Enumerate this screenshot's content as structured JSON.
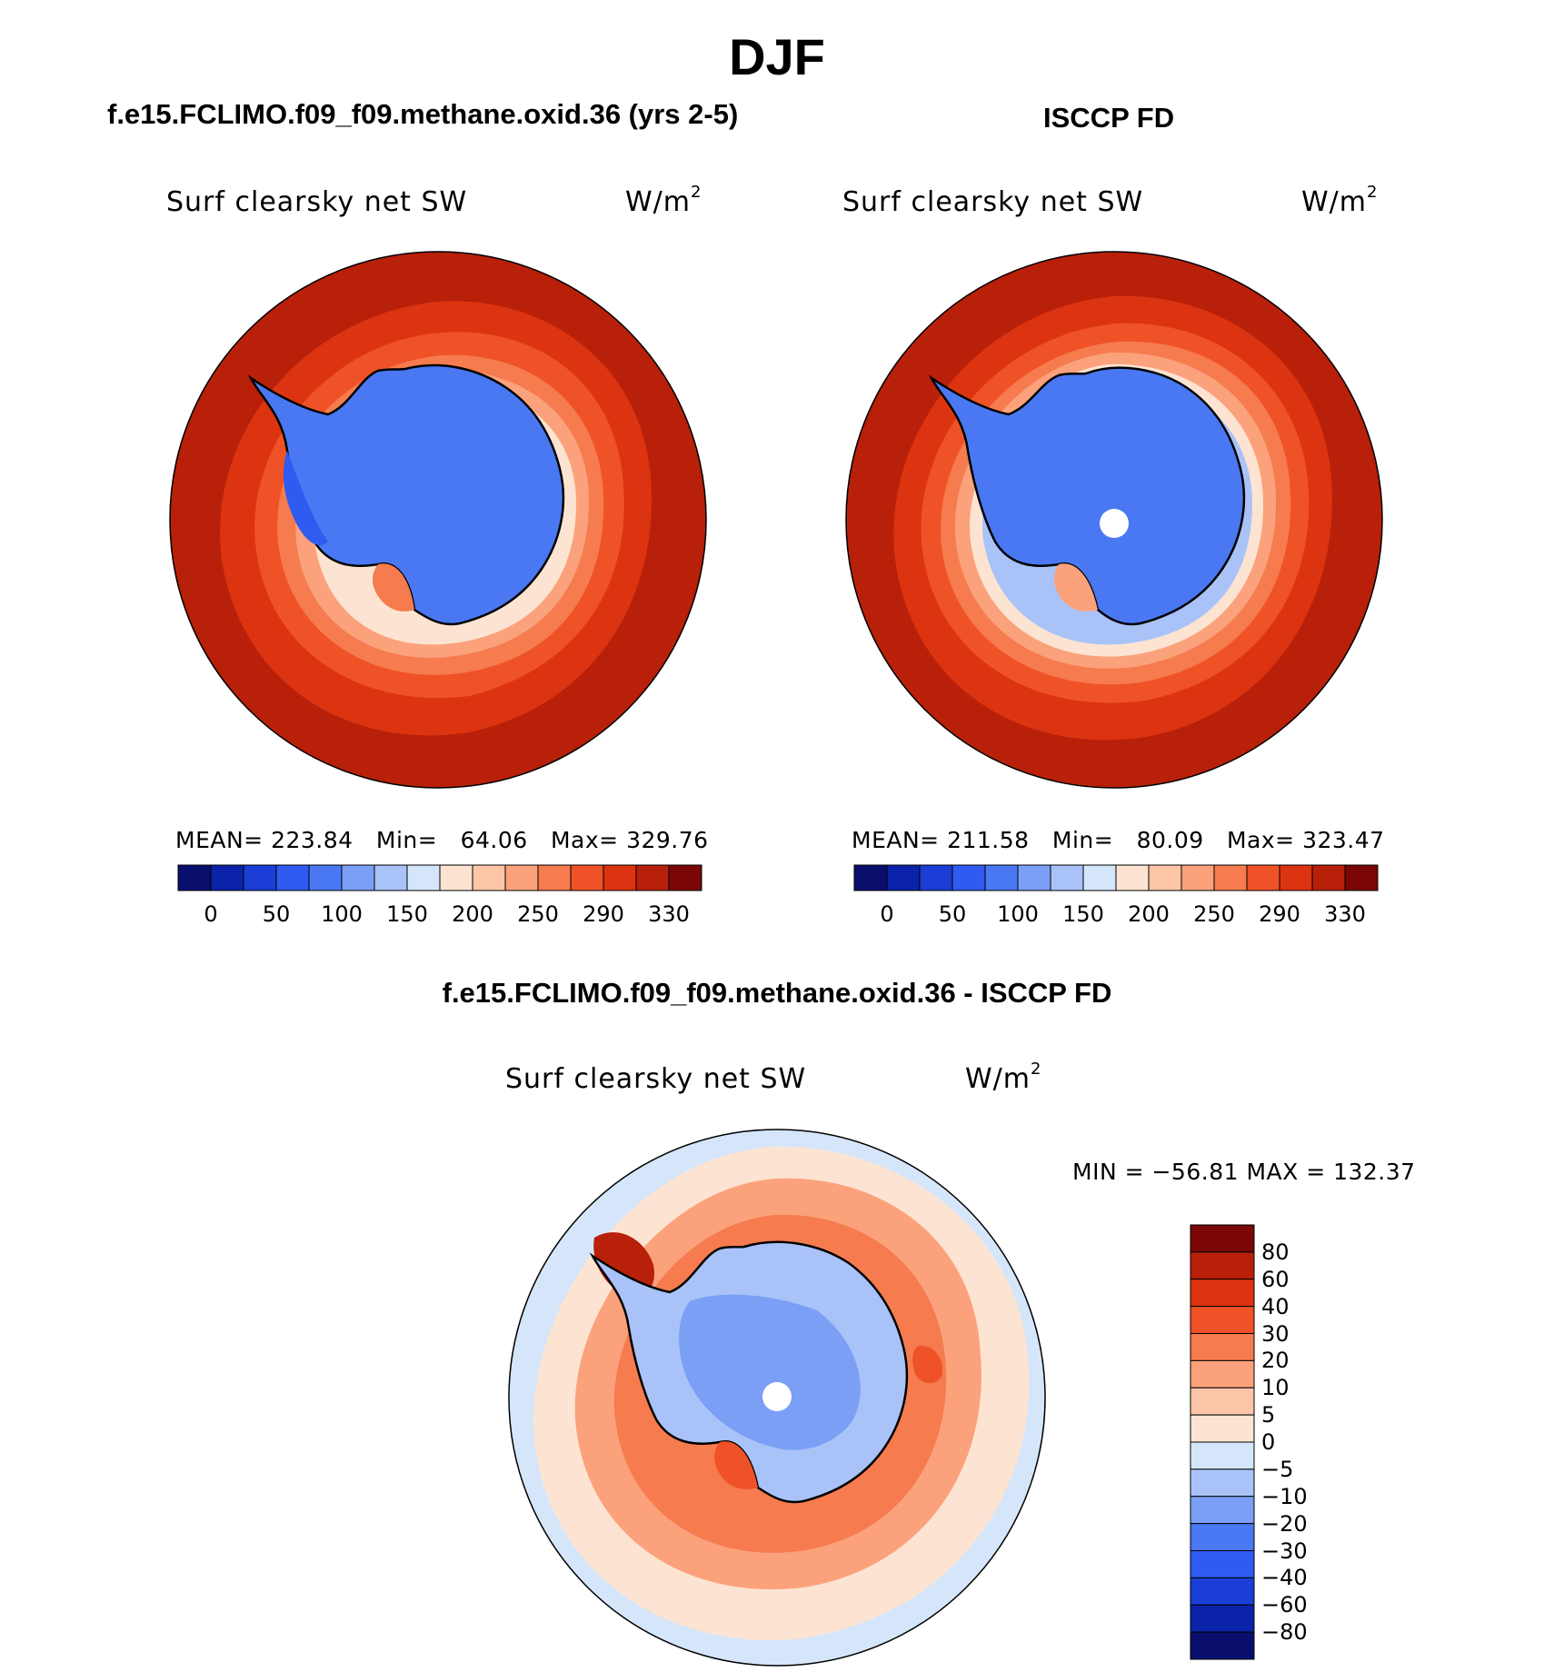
{
  "title": "DJF",
  "panels": {
    "model": {
      "header": "f.e15.FCLIMO.f09_f09.methane.oxid.36 (yrs 2-5)",
      "field_label": "Surf clearsky net SW",
      "units": "W/m",
      "units_sup": "2",
      "stats": {
        "mean_label": "MEAN=",
        "mean": "223.84",
        "min_label": "Min=",
        "min": "64.06",
        "max_label": "Max=",
        "max": "329.76"
      }
    },
    "obs": {
      "header": "ISCCP FD",
      "field_label": "Surf clearsky net SW",
      "units": "W/m",
      "units_sup": "2",
      "stats": {
        "mean_label": "MEAN=",
        "mean": "211.58",
        "min_label": "Min=",
        "min": "80.09",
        "max_label": "Max=",
        "max": "323.47"
      }
    },
    "diff": {
      "header": "f.e15.FCLIMO.f09_f09.methane.oxid.36 - ISCCP FD",
      "field_label": "Surf clearsky net SW",
      "units": "W/m",
      "units_sup": "2",
      "minmax": "MIN = −56.81 MAX = 132.37"
    }
  },
  "colorbars": {
    "absolute": {
      "colors": [
        "#0a0f6e",
        "#0b23a8",
        "#1a3ed6",
        "#2f5bf0",
        "#4a78f2",
        "#7a9ff5",
        "#a9c3f8",
        "#d6e6fa",
        "#fde4d2",
        "#fdc6a8",
        "#fba27c",
        "#f67b4f",
        "#ef5226",
        "#dc3410",
        "#b8200a",
        "#7a0606"
      ],
      "labels": [
        "0",
        "50",
        "100",
        "150",
        "200",
        "250",
        "290",
        "330"
      ]
    },
    "difference": {
      "colors": [
        "#0a0f6e",
        "#0b23a8",
        "#1a3ed6",
        "#2f5bf0",
        "#4a78f2",
        "#7a9ff5",
        "#a9c3f8",
        "#d6e6fa",
        "#fde4d2",
        "#fdc6a8",
        "#fba27c",
        "#f67b4f",
        "#ef5226",
        "#dc3410",
        "#b8200a",
        "#7a0606"
      ],
      "labels": [
        "80",
        "60",
        "40",
        "30",
        "20",
        "10",
        "5",
        "0",
        "−5",
        "−10",
        "−20",
        "−30",
        "−40",
        "−60",
        "−80"
      ]
    }
  },
  "map_colors": {
    "ocean_far": "#b8200a",
    "ocean_mid": "#dc3410",
    "ocean_near": "#f67b4f",
    "ice_edge": "#fdc6a8",
    "ice_pale": "#fde4d2",
    "antarctica": "#4a78f2",
    "antarctica_dark": "#2f5bf0",
    "diff_bg": "#d6e6fa",
    "diff_ring": "#fde4d2",
    "diff_orange": "#fba27c",
    "diff_red": "#ef5226"
  }
}
